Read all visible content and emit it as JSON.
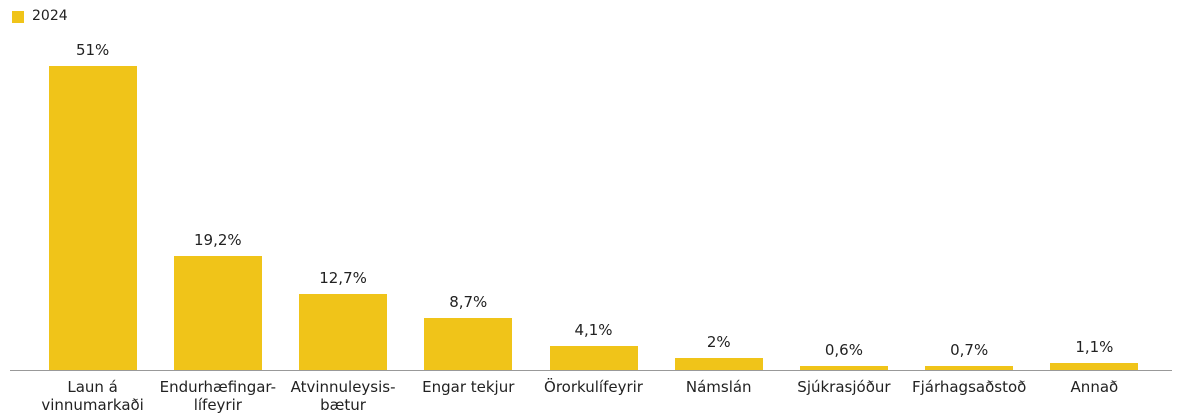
{
  "chart_data": {
    "type": "bar",
    "categories": [
      "Laun á vinnumarkaði",
      "Endurhæfingar-lífeyrir",
      "Atvinnuleysis-bætur",
      "Engar tekjur",
      "Örorkulífeyrir",
      "Námslán",
      "Sjúkrasjóður",
      "Fjárhagsaðstoð",
      "Annað"
    ],
    "series": [
      {
        "name": "2024",
        "color": "#f0c419",
        "values": [
          51,
          19.2,
          12.7,
          8.7,
          4.1,
          2,
          0.6,
          0.7,
          1.1
        ],
        "value_labels": [
          "51%",
          "19,2%",
          "12,7%",
          "8,7%",
          "4,1%",
          "2%",
          "0,6%",
          "0,7%",
          "1,1%"
        ]
      }
    ],
    "legend": "top-left"
  }
}
